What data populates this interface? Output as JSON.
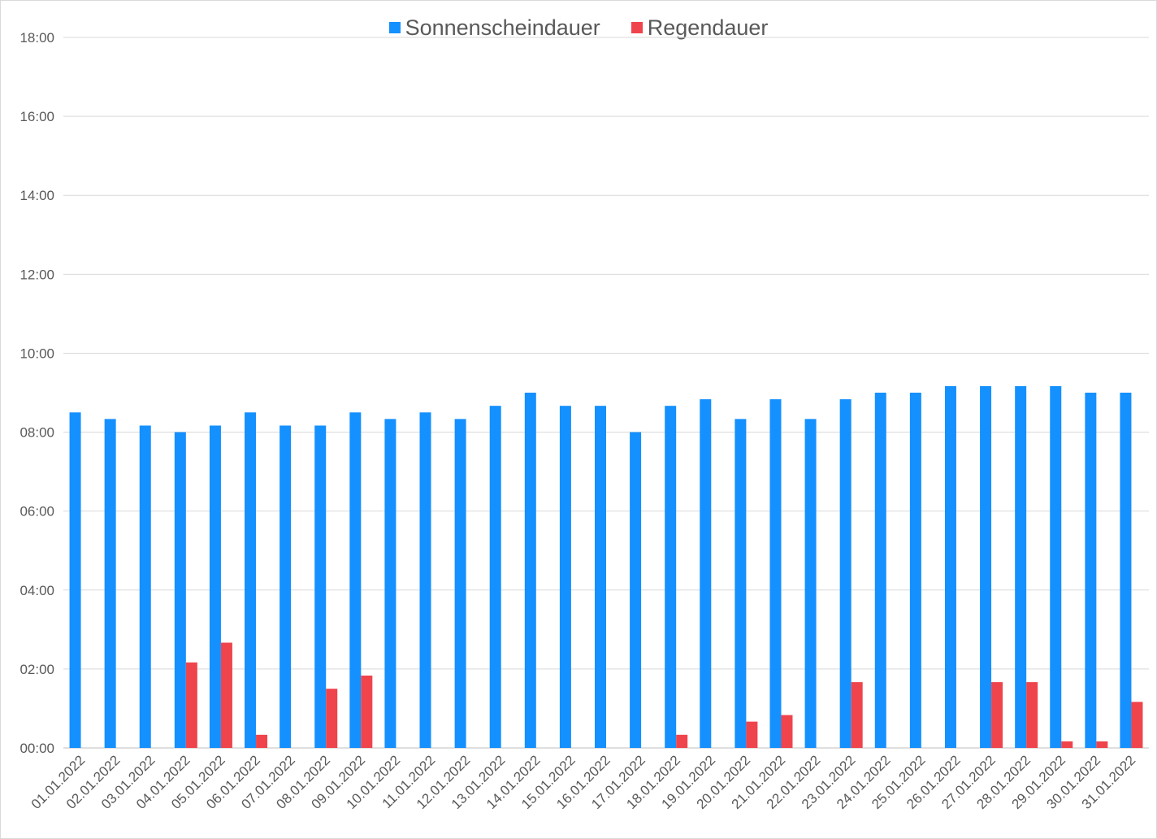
{
  "chart_data": {
    "type": "bar",
    "title": "",
    "xlabel": "",
    "ylabel": "",
    "ylim": [
      "00:00",
      "18:00"
    ],
    "yticks": [
      "00:00",
      "02:00",
      "04:00",
      "06:00",
      "08:00",
      "10:00",
      "12:00",
      "14:00",
      "16:00",
      "18:00"
    ],
    "grid": "horizontal",
    "legend": "top-center",
    "categories": [
      "01.01.2022",
      "02.01.2022",
      "03.01.2022",
      "04.01.2022",
      "05.01.2022",
      "06.01.2022",
      "07.01.2022",
      "08.01.2022",
      "09.01.2022",
      "10.01.2022",
      "11.01.2022",
      "12.01.2022",
      "13.01.2022",
      "14.01.2022",
      "15.01.2022",
      "16.01.2022",
      "17.01.2022",
      "18.01.2022",
      "19.01.2022",
      "20.01.2022",
      "21.01.2022",
      "22.01.2022",
      "23.01.2022",
      "24.01.2022",
      "25.01.2022",
      "26.01.2022",
      "27.01.2022",
      "28.01.2022",
      "29.01.2022",
      "30.01.2022",
      "31.01.2022"
    ],
    "series": [
      {
        "name": "Sonnenscheindauer",
        "color": "#1590ff",
        "values": [
          "08:30",
          "08:20",
          "08:10",
          "08:00",
          "08:10",
          "08:30",
          "08:10",
          "08:10",
          "08:30",
          "08:20",
          "08:30",
          "08:20",
          "08:40",
          "09:00",
          "08:40",
          "08:40",
          "08:00",
          "08:40",
          "08:50",
          "08:20",
          "08:50",
          "08:20",
          "08:50",
          "09:00",
          "09:00",
          "09:10",
          "09:10",
          "09:10",
          "09:10",
          "09:00",
          "09:00"
        ]
      },
      {
        "name": "Regendauer",
        "color": "#ef444c",
        "values": [
          "00:00",
          "00:00",
          "00:00",
          "02:10",
          "02:40",
          "00:20",
          "00:00",
          "01:30",
          "01:50",
          "00:00",
          "00:00",
          "00:00",
          "00:00",
          "00:00",
          "00:00",
          "00:00",
          "00:00",
          "00:20",
          "00:00",
          "00:40",
          "00:50",
          "00:00",
          "01:40",
          "00:00",
          "00:00",
          "00:00",
          "01:40",
          "01:40",
          "00:10",
          "00:10",
          "01:10"
        ]
      }
    ]
  }
}
